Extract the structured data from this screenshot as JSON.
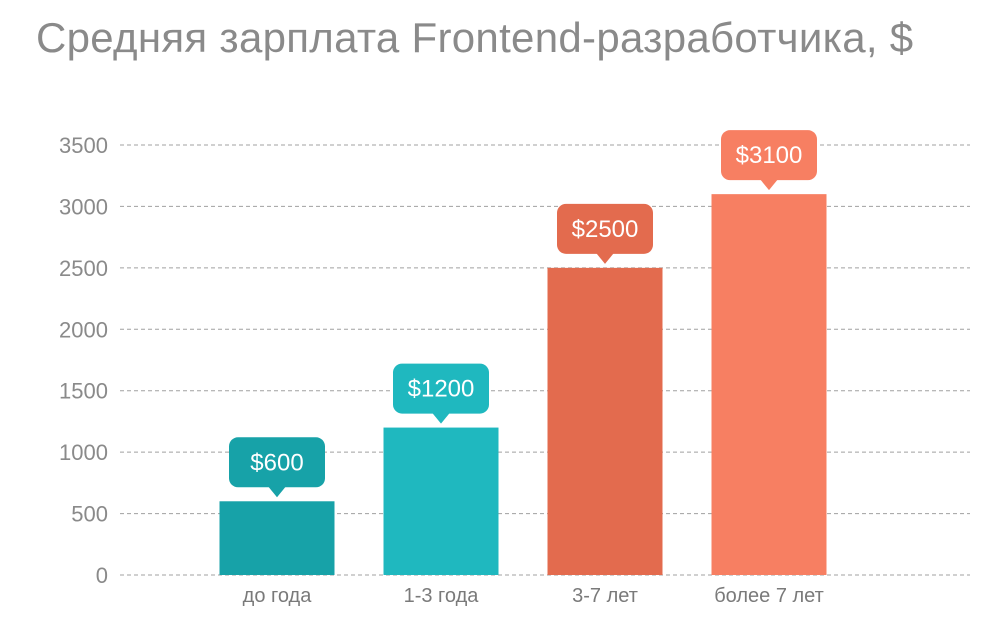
{
  "chart_data": {
    "type": "bar",
    "title": "Средняя зарплата Frontend-разработчика, $",
    "xlabel": "",
    "ylabel": "",
    "categories": [
      "до года",
      "1-3 года",
      "3-7 лет",
      "более 7 лет"
    ],
    "values": [
      600,
      1200,
      2500,
      3100
    ],
    "data_labels": [
      "$600",
      "$1200",
      "$2500",
      "$3100"
    ],
    "colors": [
      "#17a2a8",
      "#1fb8bf",
      "#e36b4e",
      "#f77f62"
    ],
    "ylim": [
      0,
      3500
    ],
    "yticks": [
      0,
      500,
      1000,
      1500,
      2000,
      2500,
      3000,
      3500
    ],
    "grid": true,
    "legend": "none"
  }
}
